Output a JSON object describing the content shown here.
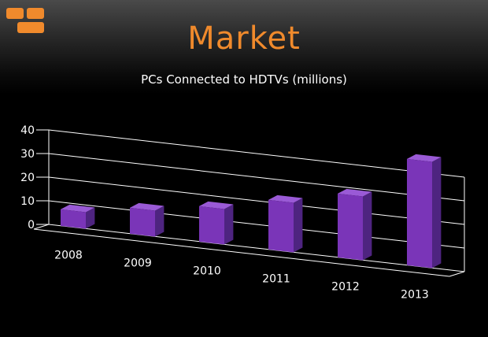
{
  "slide": {
    "title": "Market",
    "logo_icon": "orange-blocks-logo-icon"
  },
  "chart_data": {
    "type": "bar",
    "title": "PCs Connected to HDTVs (millions)",
    "categories": [
      "2008",
      "2009",
      "2010",
      "2011",
      "2012",
      "2013"
    ],
    "values": [
      7,
      11,
      15,
      21,
      27,
      45
    ],
    "ylim": [
      0,
      40
    ],
    "yticks": [
      "0",
      "10",
      "20",
      "30",
      "40"
    ],
    "xlabel": "",
    "ylabel": "",
    "grid": true,
    "colors": {
      "bar_front": "#7a35b8",
      "bar_side": "#4e2480",
      "bar_top": "#9a5ad6",
      "axis": "#ffffff"
    }
  }
}
